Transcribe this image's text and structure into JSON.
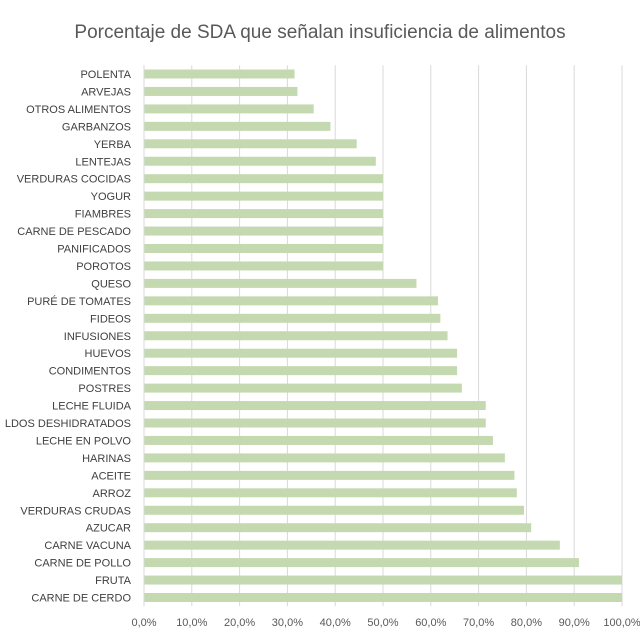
{
  "chart_data": {
    "type": "bar",
    "orientation": "horizontal",
    "title": "Porcentaje de SDA que señalan insuficiencia de alimentos",
    "xlabel": "",
    "ylabel": "",
    "xlim": [
      0,
      100
    ],
    "x_ticks": [
      "0,0%",
      "10,0%",
      "20,0%",
      "30,0%",
      "40,0%",
      "50,0%",
      "60,0%",
      "70,0%",
      "80,0%",
      "90,0%",
      "100,0%"
    ],
    "grid": true,
    "legend": "none",
    "bar_color": "#c5d9b1",
    "categories": [
      "POLENTA",
      "ARVEJAS",
      "OTROS ALIMENTOS",
      "GARBANZOS",
      "YERBA",
      "LENTEJAS",
      "VERDURAS COCIDAS",
      "YOGUR",
      "FIAMBRES",
      "CARNE DE PESCADO",
      "PANIFICADOS",
      "POROTOS",
      "QUESO",
      "PURÉ DE TOMATES",
      "FIDEOS",
      "INFUSIONES",
      "HUEVOS",
      "CONDIMENTOS",
      "POSTRES",
      "LECHE FLUIDA",
      "LDOS DESHIDRATADOS",
      "LECHE EN POLVO",
      "HARINAS",
      "ACEITE",
      "ARROZ",
      "VERDURAS CRUDAS",
      "AZUCAR",
      "CARNE VACUNA",
      "CARNE DE POLLO",
      "FRUTA",
      "CARNE DE CERDO"
    ],
    "values": [
      31.5,
      32.1,
      35.5,
      39.0,
      44.5,
      48.5,
      50.0,
      50.0,
      50.0,
      50.0,
      50.0,
      50.0,
      57.0,
      61.5,
      62.0,
      63.5,
      65.5,
      65.5,
      66.5,
      71.5,
      71.5,
      73.0,
      75.5,
      77.5,
      78.0,
      79.5,
      81.0,
      87.0,
      91.0,
      100.0,
      100.0
    ]
  }
}
